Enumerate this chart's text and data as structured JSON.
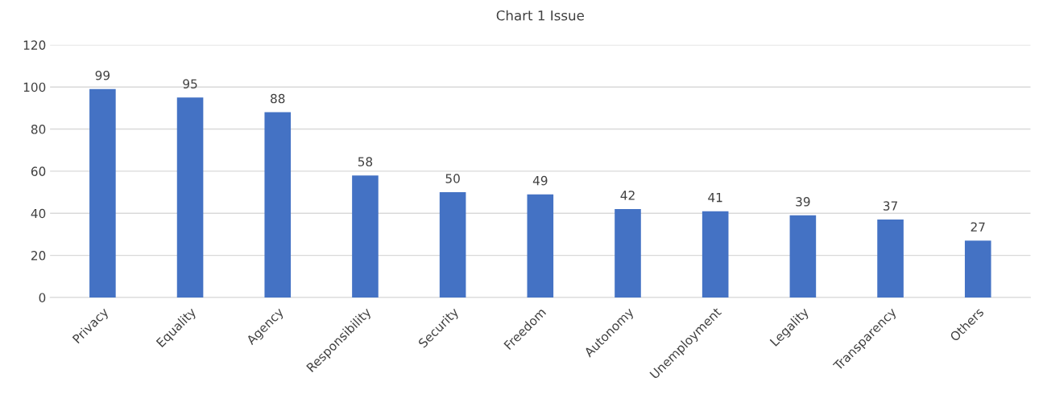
{
  "chart_data": {
    "type": "bar",
    "title": "Chart 1 Issue",
    "categories": [
      "Privacy",
      "Equality",
      "Agency",
      "Responsibility",
      "Security",
      "Freedom",
      "Autonomy",
      "Unemployment",
      "Legality",
      "Transparency",
      "Others"
    ],
    "values": [
      99,
      95,
      88,
      58,
      50,
      49,
      42,
      41,
      39,
      37,
      27
    ],
    "color": "#4472c4",
    "ylim": [
      0,
      120
    ],
    "yticks": [
      0,
      20,
      40,
      60,
      80,
      100,
      120
    ],
    "grid": "y",
    "data_labels": true,
    "legend": false
  }
}
